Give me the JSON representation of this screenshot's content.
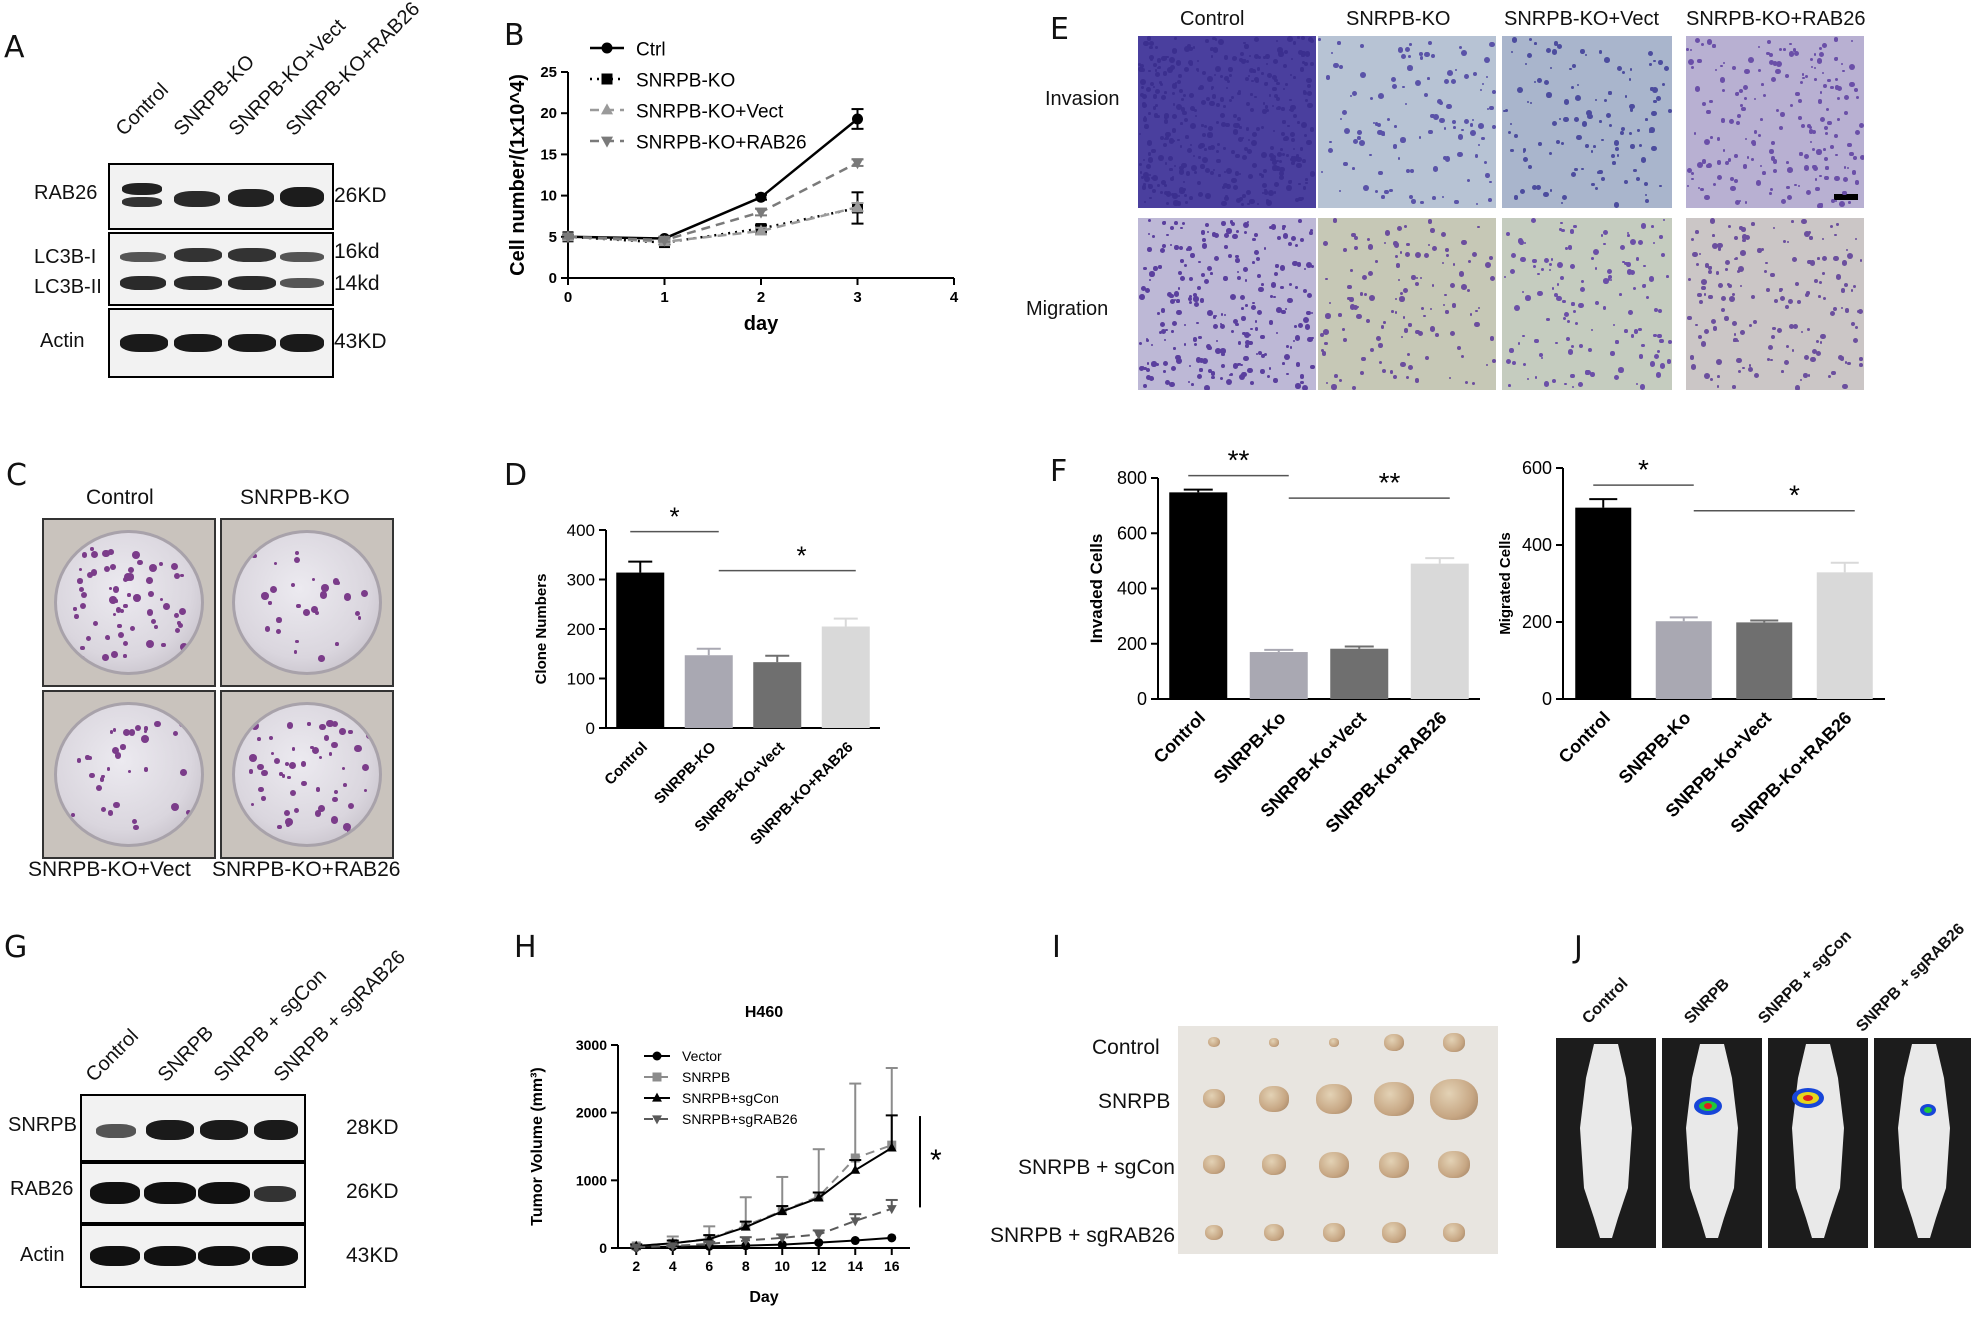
{
  "panels": {
    "A": {
      "letter": "A",
      "lanes": [
        "Control",
        "SNRPB-KO",
        "SNRPB-KO+Vect",
        "SNRPB-KO+RAB26"
      ],
      "rows": [
        {
          "label": "RAB26",
          "mw": "26KD"
        },
        {
          "label": "LC3B-I",
          "mw": "16kd"
        },
        {
          "label": "LC3B-II",
          "mw": "14kd"
        },
        {
          "label": "Actin",
          "mw": "43KD"
        }
      ]
    },
    "B": {
      "letter": "B"
    },
    "C": {
      "letter": "C",
      "labels": [
        "Control",
        "SNRPB-KO",
        "SNRPB-KO+Vect",
        "SNRPB-KO+RAB26"
      ]
    },
    "D": {
      "letter": "D"
    },
    "E": {
      "letter": "E",
      "columns": [
        "Control",
        "SNRPB-KO",
        "SNRPB-KO+Vect",
        "SNRPB-KO+RAB26"
      ],
      "rows": [
        "Invasion",
        "Migration"
      ]
    },
    "F": {
      "letter": "F"
    },
    "G": {
      "letter": "G",
      "lanes": [
        "Control",
        "SNRPB",
        "SNRPB + sgCon",
        "SNRPB + sgRAB26"
      ],
      "rows": [
        {
          "label": "SNRPB",
          "mw": "28KD"
        },
        {
          "label": "RAB26",
          "mw": "26KD"
        },
        {
          "label": "Actin",
          "mw": "43KD"
        }
      ]
    },
    "H": {
      "letter": "H"
    },
    "I": {
      "letter": "I",
      "rows": [
        "Control",
        "SNRPB",
        "SNRPB + sgCon",
        "SNRPB + sgRAB26"
      ]
    },
    "J": {
      "letter": "J",
      "lanes": [
        "Control",
        "SNRPB",
        "SNRPB + sgCon",
        "SNRPB + sgRAB26"
      ]
    }
  },
  "chart_data": [
    {
      "id": "B",
      "type": "line",
      "xlabel": "day",
      "ylabel": "Cell number/(1x10^4)",
      "xlim": [
        0,
        4
      ],
      "ylim": [
        0,
        25
      ],
      "xticks": [
        "0",
        "1",
        "2",
        "3",
        "4"
      ],
      "yticks": [
        "0",
        "5",
        "10",
        "15",
        "20",
        "25"
      ],
      "x": [
        0,
        1,
        2,
        3
      ],
      "series": [
        {
          "name": "Ctrl",
          "values": [
            5,
            4.8,
            9.8,
            19.3
          ],
          "errors": [
            0.2,
            0.2,
            0.3,
            1.2
          ],
          "color": "#000000",
          "marker": "circle",
          "dash": "solid"
        },
        {
          "name": "SNRPB-KO",
          "values": [
            5,
            4.3,
            6.0,
            8.5
          ],
          "errors": [
            0.2,
            0.2,
            0.4,
            1.9
          ],
          "color": "#000000",
          "marker": "square",
          "dash": "dot"
        },
        {
          "name": "SNRPB-KO+Vect",
          "values": [
            5,
            4.4,
            5.7,
            8.6
          ],
          "errors": [
            0.2,
            0.2,
            0.4,
            0.5
          ],
          "color": "#9a9a9a",
          "marker": "triangle-up",
          "dash": "dash"
        },
        {
          "name": "SNRPB-KO+RAB26",
          "values": [
            5,
            4.6,
            8.0,
            14.0
          ],
          "errors": [
            0.2,
            0.2,
            0.4,
            0.4
          ],
          "color": "#7a7a7a",
          "marker": "triangle-down",
          "dash": "dash"
        }
      ]
    },
    {
      "id": "D",
      "type": "bar",
      "ylabel": "Clone Numbers",
      "ylim": [
        0,
        400
      ],
      "yticks": [
        "0",
        "100",
        "200",
        "300",
        "400"
      ],
      "categories": [
        "Control",
        "SNRPB-KO",
        "SNRPB-KO+Vect",
        "SNRPB-KO+RAB26"
      ],
      "values": [
        314,
        147,
        133,
        205
      ],
      "errors": [
        22,
        13,
        13,
        16
      ],
      "colors": [
        "#000000",
        "#a9a8b2",
        "#6f6f6f",
        "#d9d9d9"
      ],
      "annotations": [
        "*",
        "*"
      ]
    },
    {
      "id": "F1",
      "type": "bar",
      "ylabel": "Invaded Cells",
      "ylim": [
        0,
        800
      ],
      "yticks": [
        "0",
        "200",
        "400",
        "600",
        "800"
      ],
      "categories": [
        "Control",
        "SNRPB-Ko",
        "SNRPB-Ko+Vect",
        "SNRPB-Ko+RAB26"
      ],
      "values": [
        748,
        170,
        182,
        490
      ],
      "errors": [
        10,
        8,
        8,
        20
      ],
      "colors": [
        "#000000",
        "#a9a8b2",
        "#6f6f6f",
        "#d9d9d9"
      ],
      "annotations": [
        "**",
        "**"
      ]
    },
    {
      "id": "F2",
      "type": "bar",
      "ylabel": "Migrated Cells",
      "ylim": [
        0,
        600
      ],
      "yticks": [
        "0",
        "200",
        "400",
        "600"
      ],
      "categories": [
        "Control",
        "SNRPB-Ko",
        "SNRPB-Ko+Vect",
        "SNRPB-Ko+RAB26"
      ],
      "values": [
        497,
        202,
        199,
        329
      ],
      "errors": [
        22,
        10,
        5,
        25
      ],
      "colors": [
        "#000000",
        "#a9a8b2",
        "#6f6f6f",
        "#d9d9d9"
      ],
      "annotations": [
        "*",
        "*"
      ]
    },
    {
      "id": "H",
      "type": "line",
      "title": "H460",
      "xlabel": "Day",
      "ylabel": "Tumor Volume (mm³)",
      "xlim": [
        1,
        17
      ],
      "ylim": [
        0,
        3000
      ],
      "xticks": [
        "2",
        "4",
        "6",
        "8",
        "10",
        "12",
        "14",
        "16"
      ],
      "yticks": [
        "0",
        "1000",
        "2000",
        "3000"
      ],
      "x": [
        2,
        4,
        6,
        8,
        10,
        12,
        14,
        16
      ],
      "series": [
        {
          "name": "Vector",
          "values": [
            10,
            20,
            25,
            35,
            50,
            80,
            110,
            150
          ],
          "errors": [
            0,
            0,
            0,
            0,
            0,
            0,
            0,
            0
          ],
          "color": "#000000",
          "marker": "circle",
          "dash": "solid"
        },
        {
          "name": "SNRPB",
          "values": [
            30,
            70,
            140,
            330,
            550,
            760,
            1330,
            1520
          ],
          "errors": [
            30,
            100,
            180,
            420,
            500,
            700,
            1100,
            1140
          ],
          "color": "#8c8c8c",
          "marker": "square",
          "dash": "dash"
        },
        {
          "name": "SNRPB+sgCon",
          "values": [
            30,
            70,
            130,
            310,
            540,
            740,
            1150,
            1480
          ],
          "errors": [
            20,
            40,
            60,
            80,
            80,
            80,
            150,
            480
          ],
          "color": "#000000",
          "marker": "triangle-up",
          "dash": "solid"
        },
        {
          "name": "SNRPB+sgRAB26",
          "values": [
            10,
            30,
            60,
            110,
            150,
            200,
            400,
            580
          ],
          "errors": [
            10,
            20,
            30,
            50,
            50,
            60,
            100,
            130
          ],
          "color": "#5a5a5a",
          "marker": "triangle-down",
          "dash": "dash"
        }
      ],
      "annotations": [
        "*"
      ]
    }
  ]
}
